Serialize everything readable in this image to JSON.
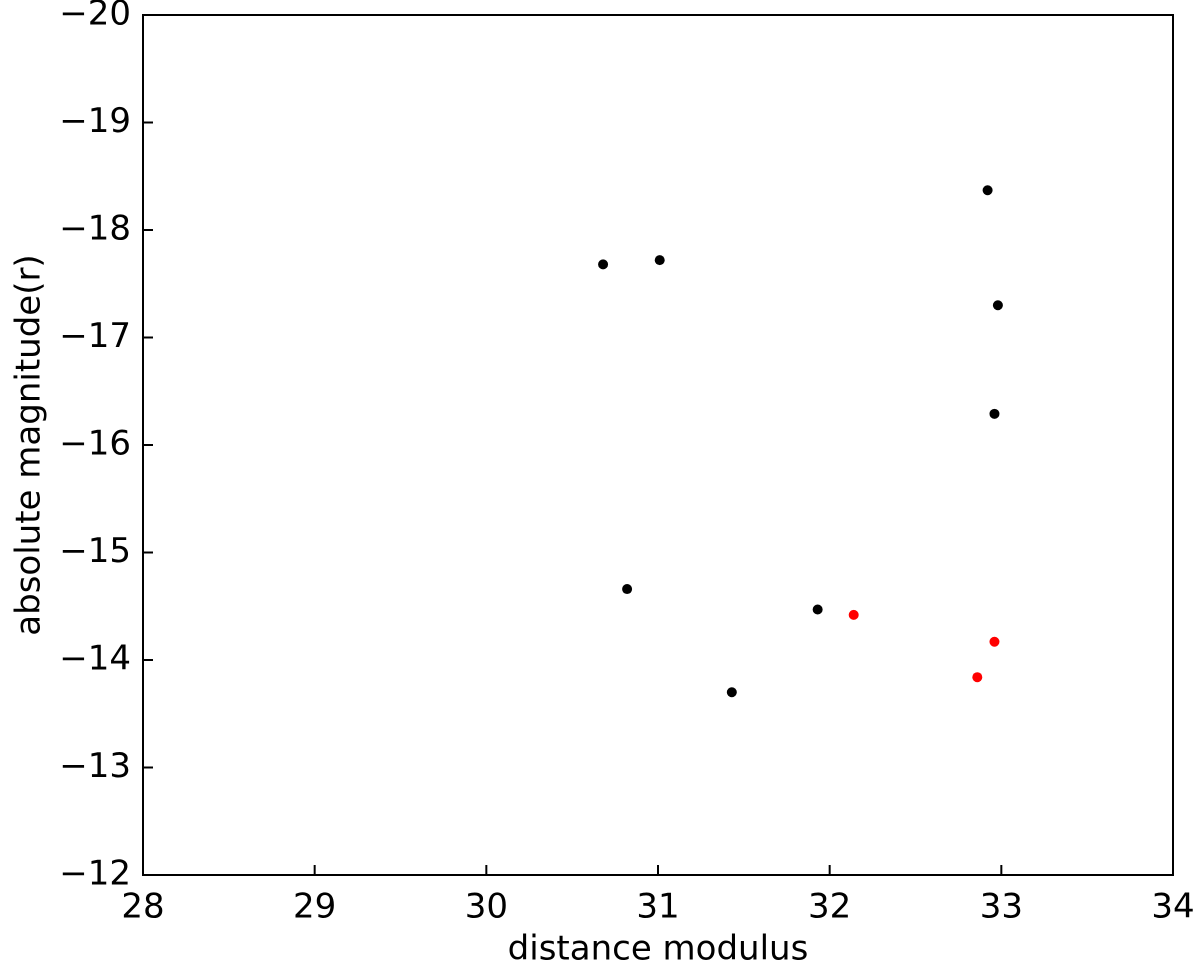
{
  "chart_data": {
    "type": "scatter",
    "xlabel": "distance modulus",
    "ylabel": "absolute magnitude(r)",
    "xlim": [
      28,
      34
    ],
    "xticks": [
      28,
      29,
      30,
      31,
      32,
      33,
      34
    ],
    "ylim": [
      -12,
      -20
    ],
    "yticks": [
      {
        "value": -20,
        "label": "−20"
      },
      {
        "value": -19,
        "label": "−19"
      },
      {
        "value": -18,
        "label": "−18"
      },
      {
        "value": -17,
        "label": "−17"
      },
      {
        "value": -16,
        "label": "−16"
      },
      {
        "value": -15,
        "label": "−15"
      },
      {
        "value": -14,
        "label": "−14"
      },
      {
        "value": -13,
        "label": "−13"
      },
      {
        "value": -12,
        "label": "−12"
      }
    ],
    "tick_direction": "in",
    "series": [
      {
        "color": "#000000",
        "x": [
          30.68,
          31.01,
          32.92,
          32.98,
          32.96,
          30.82,
          31.93,
          31.43
        ],
        "values": [
          -17.68,
          -17.72,
          -18.37,
          -17.3,
          -16.29,
          -14.66,
          -14.47,
          -13.7
        ]
      },
      {
        "color": "#ff0000",
        "x": [
          32.14,
          32.96,
          32.86
        ],
        "values": [
          -14.42,
          -14.17,
          -13.84
        ]
      }
    ]
  }
}
